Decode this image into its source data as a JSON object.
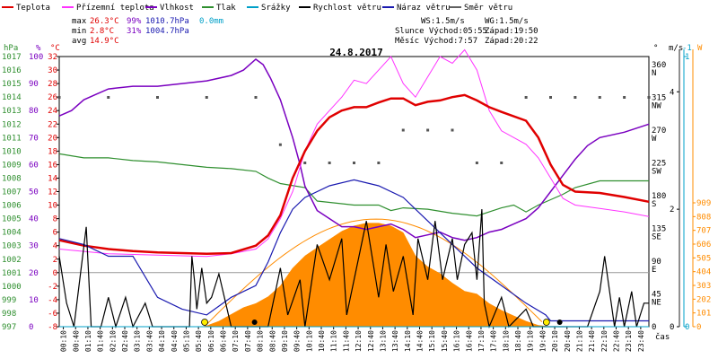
{
  "chart_data": {
    "type": "line",
    "title": "24.8.2017",
    "legend": [
      {
        "name": "Teplota",
        "color": "#e00000"
      },
      {
        "name": "Přízemní teplota",
        "color": "#ff33ff"
      },
      {
        "name": "Vlhkost",
        "color": "#7a00c0"
      },
      {
        "name": "Tlak",
        "color": "#2f8f2f"
      },
      {
        "name": "Srážky",
        "color": "#00a0c8"
      },
      {
        "name": "Rychlost větru",
        "color": "#000000"
      },
      {
        "name": "Náraz větru",
        "color": "#1a1ab0"
      },
      {
        "name": "Směr větru",
        "color": "#606060"
      }
    ],
    "stats": {
      "max_label": "max",
      "max_temp": "26.3°C",
      "max_hum": "99%",
      "max_press": "1010.7hPa",
      "rain": "0.0mm",
      "min_label": "min",
      "min_temp": "2.8°C",
      "min_hum": "31%",
      "min_press": "1004.7hPa",
      "avg_label": "avg",
      "avg_temp": "14.9°C"
    },
    "info": {
      "ws": "WS:1.5m/s",
      "wg": "WG:1.5m/s",
      "sun_rise": "Slunce Východ:05:55",
      "sun_set": "Západ:19:50",
      "moon_rise": "Měsíc Východ:7:57",
      "moon_set": "Západ:20:22"
    },
    "axes": {
      "hpa_unit": "hPa",
      "hpa_ticks": [
        1017,
        1016,
        1015,
        1014,
        1013,
        1012,
        1011,
        1010,
        1009,
        1008,
        1007,
        1006,
        1005,
        1004,
        1003,
        1002,
        1001,
        1000,
        999,
        998,
        997
      ],
      "pct_unit": "%",
      "pct_ticks": [
        100,
        90,
        80,
        70,
        60,
        50,
        40,
        30,
        20,
        10,
        0
      ],
      "c_unit": "°C",
      "c_ticks": [
        32,
        30,
        28,
        26,
        24,
        22,
        20,
        18,
        16,
        14,
        12,
        10,
        8,
        6,
        4,
        2,
        0,
        -2,
        -4,
        -6,
        -8
      ],
      "dir_unit": "°",
      "dir_ticks": [
        {
          "deg": "360",
          "dir": "N",
          "v": 360
        },
        {
          "deg": "315",
          "dir": "NW",
          "v": 315
        },
        {
          "deg": "270",
          "dir": "W",
          "v": 270
        },
        {
          "deg": "225",
          "dir": "SW",
          "v": 225
        },
        {
          "deg": "180",
          "dir": "S",
          "v": 180
        },
        {
          "deg": "135",
          "dir": "SE",
          "v": 135
        },
        {
          "deg": "90",
          "dir": "E",
          "v": 90
        },
        {
          "deg": "45",
          "dir": "NE",
          "v": 45
        },
        {
          "deg": "0",
          "dir": "",
          "v": 0
        }
      ],
      "ms_unit": "m/s",
      "ms_ticks": [
        4,
        2,
        0
      ],
      "mm_unit": "-1",
      "mm_ticks": [
        1,
        0
      ],
      "w_unit": "W",
      "w_ticks": [
        909,
        808,
        707,
        606,
        505,
        404,
        303,
        202,
        101,
        0
      ],
      "x_label": "čas",
      "x_ticks": [
        "00:10",
        "00:40",
        "01:10",
        "01:40",
        "02:10",
        "02:40",
        "03:10",
        "03:40",
        "04:10",
        "04:40",
        "05:10",
        "05:40",
        "06:10",
        "06:40",
        "07:10",
        "07:40",
        "08:10",
        "08:40",
        "09:10",
        "09:40",
        "10:10",
        "10:40",
        "11:10",
        "11:40",
        "12:10",
        "12:40",
        "13:10",
        "13:40",
        "14:10",
        "14:40",
        "15:10",
        "15:40",
        "16:10",
        "16:40",
        "17:10",
        "17:40",
        "18:10",
        "18:40",
        "19:10",
        "19:40",
        "20:10",
        "20:40",
        "21:10",
        "21:40",
        "22:10",
        "22:40",
        "23:10",
        "23:40"
      ]
    },
    "series": {
      "teplota_c": [
        [
          0,
          4.8
        ],
        [
          1,
          4.0
        ],
        [
          2,
          3.5
        ],
        [
          3,
          3.2
        ],
        [
          4,
          3.0
        ],
        [
          5,
          2.9
        ],
        [
          6,
          2.8
        ],
        [
          7,
          2.9
        ],
        [
          8,
          4.0
        ],
        [
          8.5,
          5.5
        ],
        [
          9,
          8.5
        ],
        [
          9.5,
          14
        ],
        [
          10,
          18
        ],
        [
          10.5,
          21
        ],
        [
          11,
          23
        ],
        [
          11.5,
          24
        ],
        [
          12,
          24.5
        ],
        [
          12.5,
          24.5
        ],
        [
          13,
          25.2
        ],
        [
          13.5,
          25.8
        ],
        [
          14,
          25.8
        ],
        [
          14.5,
          24.8
        ],
        [
          15,
          25.3
        ],
        [
          15.5,
          25.5
        ],
        [
          16,
          26.0
        ],
        [
          16.5,
          26.3
        ],
        [
          17,
          25.5
        ],
        [
          17.5,
          24.5
        ],
        [
          18,
          23.8
        ],
        [
          19,
          22.5
        ],
        [
          19.5,
          20
        ],
        [
          20,
          16
        ],
        [
          20.5,
          13
        ],
        [
          21,
          12
        ],
        [
          22,
          11.8
        ],
        [
          23,
          11.2
        ],
        [
          24,
          10.5
        ]
      ],
      "prizemni_c": [
        [
          0,
          3.5
        ],
        [
          2,
          2.8
        ],
        [
          4,
          2.6
        ],
        [
          6,
          2.4
        ],
        [
          7,
          2.8
        ],
        [
          8,
          3.5
        ],
        [
          8.5,
          5
        ],
        [
          9,
          8
        ],
        [
          9.5,
          12
        ],
        [
          10,
          18
        ],
        [
          10.5,
          22
        ],
        [
          11,
          24
        ],
        [
          11.5,
          26
        ],
        [
          12,
          28.5
        ],
        [
          12.5,
          28
        ],
        [
          13,
          30
        ],
        [
          13.5,
          32
        ],
        [
          14,
          28
        ],
        [
          14.5,
          26
        ],
        [
          15,
          29
        ],
        [
          15.5,
          32
        ],
        [
          16,
          31
        ],
        [
          16.5,
          33
        ],
        [
          17,
          30
        ],
        [
          17.5,
          24
        ],
        [
          18,
          21
        ],
        [
          19,
          19
        ],
        [
          19.5,
          17
        ],
        [
          20,
          14
        ],
        [
          20.5,
          11
        ],
        [
          21,
          10
        ],
        [
          22,
          9.5
        ],
        [
          23,
          9
        ],
        [
          24,
          8.3
        ]
      ],
      "vlhkost_pct": [
        [
          0,
          78
        ],
        [
          0.5,
          80
        ],
        [
          1,
          84
        ],
        [
          1.5,
          86
        ],
        [
          2,
          88
        ],
        [
          3,
          89
        ],
        [
          4,
          89
        ],
        [
          5,
          90
        ],
        [
          6,
          91
        ],
        [
          7,
          93
        ],
        [
          7.5,
          95
        ],
        [
          8,
          99
        ],
        [
          8.3,
          97
        ],
        [
          8.6,
          92
        ],
        [
          9,
          84
        ],
        [
          9.5,
          70
        ],
        [
          9.8,
          60
        ],
        [
          10,
          52
        ],
        [
          10.5,
          43
        ],
        [
          11,
          40
        ],
        [
          11.5,
          37
        ],
        [
          12,
          37
        ],
        [
          12.5,
          36
        ],
        [
          13,
          37
        ],
        [
          13.5,
          38
        ],
        [
          14,
          36
        ],
        [
          14.5,
          33
        ],
        [
          15,
          34
        ],
        [
          15.5,
          35
        ],
        [
          16,
          33
        ],
        [
          16.5,
          32
        ],
        [
          17,
          33
        ],
        [
          17.5,
          35
        ],
        [
          18,
          36
        ],
        [
          18.5,
          38
        ],
        [
          19,
          40
        ],
        [
          19.5,
          44
        ],
        [
          20,
          50
        ],
        [
          20.5,
          56
        ],
        [
          21,
          62
        ],
        [
          21.5,
          67
        ],
        [
          22,
          70
        ],
        [
          23,
          72
        ],
        [
          24,
          75
        ]
      ],
      "tlak_hpa": [
        [
          0,
          1009.8
        ],
        [
          1,
          1009.5
        ],
        [
          2,
          1009.5
        ],
        [
          3,
          1009.3
        ],
        [
          4,
          1009.2
        ],
        [
          5,
          1009.0
        ],
        [
          6,
          1008.8
        ],
        [
          7,
          1008.7
        ],
        [
          8,
          1008.5
        ],
        [
          8.5,
          1008.0
        ],
        [
          9,
          1007.6
        ],
        [
          10,
          1007.3
        ],
        [
          10.5,
          1006.3
        ],
        [
          11,
          1006.2
        ],
        [
          12,
          1006.0
        ],
        [
          13,
          1006.0
        ],
        [
          13.5,
          1005.6
        ],
        [
          14,
          1005.8
        ],
        [
          15,
          1005.7
        ],
        [
          16,
          1005.4
        ],
        [
          17,
          1005.2
        ],
        [
          17.5,
          1005.5
        ],
        [
          18,
          1005.8
        ],
        [
          18.5,
          1006.0
        ],
        [
          19,
          1005.5
        ],
        [
          19.5,
          1006.0
        ],
        [
          20,
          1006.4
        ],
        [
          20.5,
          1006.8
        ],
        [
          21,
          1007.3
        ],
        [
          22,
          1007.8
        ],
        [
          23,
          1007.8
        ],
        [
          24,
          1007.8
        ]
      ],
      "naraz_ms": [
        [
          0,
          1.5
        ],
        [
          1,
          1.4
        ],
        [
          2,
          1.2
        ],
        [
          3,
          1.2
        ],
        [
          4,
          0.5
        ],
        [
          5,
          0.3
        ],
        [
          6,
          0.2
        ],
        [
          7,
          0.5
        ],
        [
          8,
          0.7
        ],
        [
          8.5,
          1.1
        ],
        [
          9,
          1.6
        ],
        [
          9.5,
          2.0
        ],
        [
          10,
          2.2
        ],
        [
          11,
          2.4
        ],
        [
          12,
          2.5
        ],
        [
          13,
          2.4
        ],
        [
          14,
          2.2
        ],
        [
          15,
          1.8
        ],
        [
          16,
          1.4
        ],
        [
          17,
          1.0
        ],
        [
          18,
          0.7
        ],
        [
          19,
          0.4
        ],
        [
          19.8,
          0.2
        ],
        [
          20,
          0.1
        ],
        [
          24,
          0.1
        ]
      ],
      "srazky_mm": [
        [
          0,
          0
        ],
        [
          24,
          0
        ]
      ],
      "rychlost_ms": [
        [
          0,
          1.2
        ],
        [
          0.3,
          0.4
        ],
        [
          0.6,
          0
        ],
        [
          1.1,
          1.7
        ],
        [
          1.3,
          0
        ],
        [
          1.7,
          0
        ],
        [
          2,
          0.5
        ],
        [
          2.3,
          0
        ],
        [
          2.7,
          0.5
        ],
        [
          3.0,
          0
        ],
        [
          3.5,
          0.4
        ],
        [
          3.8,
          0
        ],
        [
          4.6,
          0
        ],
        [
          4.9,
          0
        ],
        [
          5,
          0
        ],
        [
          5.3,
          0
        ],
        [
          5.4,
          1.2
        ],
        [
          5.5,
          0.8
        ],
        [
          5.6,
          0.3
        ],
        [
          5.8,
          1.0
        ],
        [
          6.0,
          0.4
        ],
        [
          6.2,
          0.5
        ],
        [
          6.5,
          0.9
        ],
        [
          7,
          0
        ],
        [
          8.3,
          0
        ],
        [
          8.5,
          0
        ],
        [
          9,
          1.0
        ],
        [
          9.3,
          0.2
        ],
        [
          9.8,
          0.8
        ],
        [
          10,
          0
        ],
        [
          10.5,
          1.4
        ],
        [
          11,
          0.8
        ],
        [
          11.5,
          1.5
        ],
        [
          11.7,
          0.2
        ],
        [
          12,
          0.8
        ],
        [
          12.5,
          1.8
        ],
        [
          13,
          0.5
        ],
        [
          13.3,
          1.4
        ],
        [
          13.6,
          0.6
        ],
        [
          14,
          1.2
        ],
        [
          14.4,
          0.2
        ],
        [
          14.6,
          1.5
        ],
        [
          15,
          0.8
        ],
        [
          15.3,
          1.8
        ],
        [
          15.6,
          0.8
        ],
        [
          16,
          1.5
        ],
        [
          16.2,
          0.8
        ],
        [
          16.5,
          1.4
        ],
        [
          16.8,
          1.6
        ],
        [
          17,
          0.8
        ],
        [
          17.2,
          2.0
        ],
        [
          17.3,
          0.4
        ],
        [
          17.5,
          0
        ],
        [
          18,
          0.5
        ],
        [
          18.3,
          0
        ],
        [
          19,
          0.3
        ],
        [
          19.3,
          0
        ],
        [
          21,
          0
        ],
        [
          21.5,
          0
        ],
        [
          22,
          0.6
        ],
        [
          22.2,
          1.2
        ],
        [
          22.4,
          0.6
        ],
        [
          22.6,
          0
        ],
        [
          22.8,
          0.5
        ],
        [
          23,
          0
        ],
        [
          23.3,
          0.6
        ],
        [
          23.5,
          0
        ],
        [
          23.8,
          0.4
        ],
        [
          24,
          0.4
        ]
      ],
      "smer_deg": [
        [
          0,
          315
        ],
        [
          2,
          315
        ],
        [
          4,
          315
        ],
        [
          6,
          315
        ],
        [
          8,
          315
        ],
        [
          9,
          250
        ],
        [
          10,
          225
        ],
        [
          11,
          225
        ],
        [
          12,
          225
        ],
        [
          13,
          225
        ],
        [
          14,
          270
        ],
        [
          15,
          270
        ],
        [
          16,
          270
        ],
        [
          17,
          225
        ],
        [
          18,
          225
        ],
        [
          19,
          315
        ],
        [
          20,
          315
        ],
        [
          21,
          315
        ],
        [
          22,
          315
        ],
        [
          23,
          315
        ],
        [
          24,
          315
        ]
      ],
      "slunce_w": [
        [
          0,
          0
        ],
        [
          5,
          0
        ],
        [
          5.9,
          0
        ],
        [
          6.5,
          40
        ],
        [
          7,
          90
        ],
        [
          7.5,
          140
        ],
        [
          8,
          170
        ],
        [
          8.5,
          220
        ],
        [
          9,
          300
        ],
        [
          9.5,
          430
        ],
        [
          10,
          520
        ],
        [
          10.5,
          580
        ],
        [
          11,
          640
        ],
        [
          11.5,
          700
        ],
        [
          12,
          740
        ],
        [
          12.5,
          760
        ],
        [
          13,
          760
        ],
        [
          13.5,
          740
        ],
        [
          14,
          690
        ],
        [
          14.5,
          520
        ],
        [
          15,
          440
        ],
        [
          15.5,
          390
        ],
        [
          16,
          320
        ],
        [
          16.5,
          260
        ],
        [
          17,
          240
        ],
        [
          17.5,
          170
        ],
        [
          18,
          120
        ],
        [
          18.5,
          80
        ],
        [
          19,
          40
        ],
        [
          19.5,
          10
        ],
        [
          20,
          0
        ],
        [
          24,
          0
        ]
      ]
    },
    "sun_marks": [
      "sunrise",
      "sunset"
    ],
    "moon_marks": [
      "moonrise",
      "moonset"
    ]
  }
}
